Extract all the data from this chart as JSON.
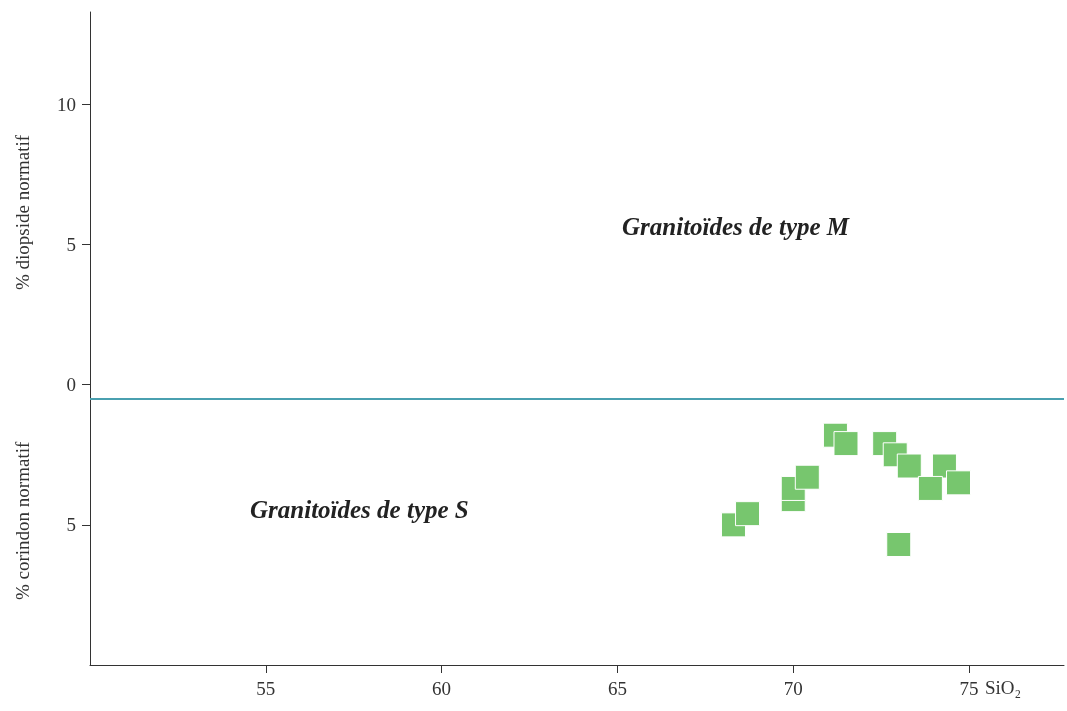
{
  "chart_data": {
    "type": "scatter",
    "xlabel": "SiO₂",
    "ylabel": "% diopside normatif",
    "annotations": [
      "Granitoïdes de type M",
      "Granitoïdes de type S",
      "% corindon normatif"
    ],
    "x": [
      68.3,
      68.7,
      70.0,
      70.0,
      70.4,
      71.2,
      71.5,
      72.6,
      72.9,
      73.3,
      74.3,
      73.9,
      74.7,
      73.0
    ],
    "series": [
      {
        "color": "#77c66e",
        "values": [
          -5.0,
          -4.6,
          -4.1,
          -3.7,
          -3.3,
          -1.8,
          -2.1,
          -2.1,
          -2.5,
          -2.9,
          -2.9,
          -3.7,
          -3.5,
          -5.7
        ]
      }
    ],
    "xlim": [
      50,
      77.7
    ],
    "xticks": [
      55,
      60,
      65,
      70,
      75
    ],
    "ylim": [
      -10,
      13.3
    ],
    "yticks": [
      {
        "value": -5,
        "label": "5"
      },
      0,
      5,
      10
    ],
    "ref_lines": [
      {
        "axis": "y",
        "value": -0.5,
        "color": "#4aa0b0"
      }
    ],
    "marker": "square",
    "grid": false
  }
}
